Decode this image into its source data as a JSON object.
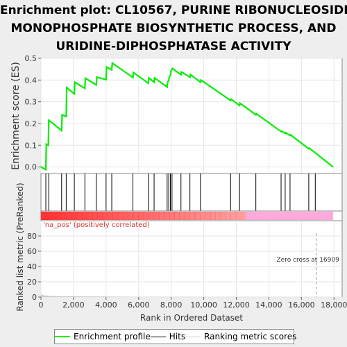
{
  "title_lines": [
    "Enrichment plot: CL10567, PURINE RIBONUCLEOSIDE",
    "MONOPHOSPHATE BIOSYNTHETIC PROCESS, AND",
    "URIDINE-DIPHOSPHATASE ACTIVITY"
  ],
  "legend": {
    "profile": "Enrichment profile",
    "hits": "Hits",
    "ranking": "Ranking metric scores"
  },
  "colors": {
    "profile": "#00ee00",
    "hits": "#000000",
    "ranking": "#cccccc",
    "pos_band": "#ff3333",
    "neg_band": "#ffaadd",
    "pos_label": "#dd3333"
  },
  "annotations": {
    "pos_label": "'na_pos' (positively correlated)",
    "zero_cross": "Zero cross at 16909"
  },
  "chart_data": [
    {
      "type": "line",
      "name": "enrichment-profile",
      "ylabel": "Enrichment score (ES)",
      "xlim": [
        0,
        18500
      ],
      "ylim": [
        -0.03,
        0.5
      ],
      "yticks": [
        0.0,
        0.1,
        0.2,
        0.3,
        0.4,
        0.5
      ],
      "ytick_labels": [
        "0.0",
        "0.1",
        "0.2",
        "0.3",
        "0.4",
        "0.5"
      ],
      "grid": true,
      "x": [
        0,
        300,
        330,
        450,
        480,
        1270,
        1300,
        1550,
        1580,
        2050,
        2080,
        2700,
        2730,
        3400,
        3430,
        4000,
        4030,
        4350,
        4380,
        5650,
        5680,
        6600,
        6630,
        6950,
        6980,
        7750,
        7780,
        7850,
        7880,
        7950,
        7980,
        8050,
        8080,
        8600,
        8630,
        9150,
        9180,
        9800,
        9830,
        11650,
        11680,
        12200,
        12230,
        13200,
        13230,
        14750,
        14780,
        15000,
        15030,
        15300,
        15330,
        16450,
        16480,
        17950
      ],
      "y": [
        0.0,
        -0.012,
        0.105,
        0.1,
        0.215,
        0.168,
        0.24,
        0.232,
        0.365,
        0.337,
        0.39,
        0.362,
        0.408,
        0.378,
        0.413,
        0.402,
        0.46,
        0.447,
        0.478,
        0.412,
        0.435,
        0.385,
        0.41,
        0.39,
        0.41,
        0.368,
        0.39,
        0.398,
        0.415,
        0.42,
        0.44,
        0.448,
        0.453,
        0.424,
        0.437,
        0.413,
        0.425,
        0.39,
        0.4,
        0.306,
        0.312,
        0.283,
        0.293,
        0.24,
        0.245,
        0.163,
        0.165,
        0.155,
        0.158,
        0.145,
        0.148,
        0.084,
        0.087,
        0.0
      ]
    },
    {
      "type": "scatter",
      "name": "hits",
      "x": [
        300,
        480,
        1270,
        1550,
        2050,
        2700,
        3400,
        4000,
        4350,
        5650,
        6600,
        6950,
        7750,
        7850,
        7950,
        8050,
        8600,
        9150,
        9800,
        11650,
        12200,
        13200,
        14750,
        15000,
        15300,
        16450,
        16850
      ]
    },
    {
      "type": "area",
      "name": "ranking-metric",
      "xlabel": "Rank in Ordered Dataset",
      "ylabel": "Ranked list metric (PreRanked)",
      "xlim": [
        0,
        18500
      ],
      "ylim": [
        0,
        100
      ],
      "yticks": [
        0,
        20,
        40,
        60,
        80
      ],
      "ytick_labels": [
        "0",
        "20",
        "40",
        "60",
        "80"
      ],
      "xticks": [
        0,
        2000,
        4000,
        6000,
        8000,
        10000,
        12000,
        14000,
        16000,
        18000
      ],
      "xtick_labels": [
        "0",
        "2,000",
        "4,000",
        "6,000",
        "8,000",
        "10,000",
        "12,000",
        "14,000",
        "16,000",
        "18,000"
      ],
      "grid": true,
      "x": [
        0,
        50,
        200,
        500,
        1000,
        2000,
        4000,
        5500,
        8000,
        12000,
        16909,
        18000
      ],
      "y": [
        3.5,
        2.8,
        2.2,
        1.6,
        1.2,
        0.9,
        0.6,
        0.35,
        0.2,
        0.08,
        0.0,
        0.0
      ]
    }
  ]
}
